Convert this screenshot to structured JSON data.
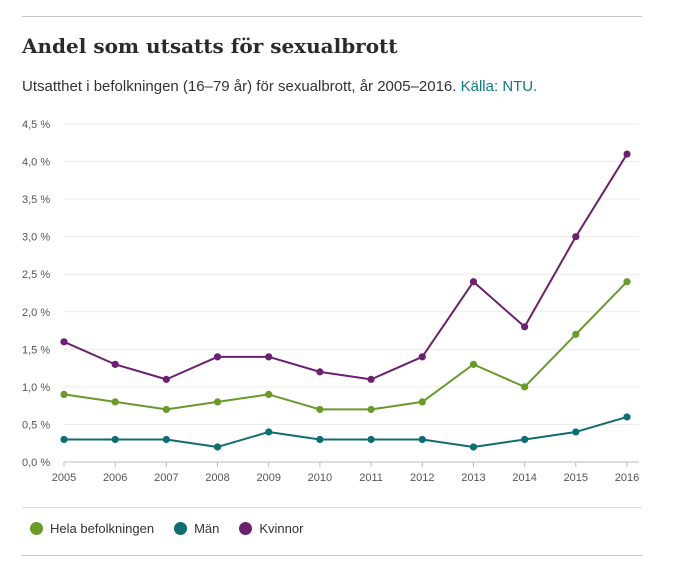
{
  "header": {
    "title": "Andel som utsatts för sexualbrott",
    "subtitle": "Utsatthet i befolkningen (16–79 år) för sexualbrott, år 2005–2016. ",
    "source_label": "Källa: NTU."
  },
  "chart_data": {
    "type": "line",
    "title": "",
    "xlabel": "",
    "ylabel": "",
    "x": [
      2005,
      2006,
      2007,
      2008,
      2009,
      2010,
      2011,
      2012,
      2013,
      2014,
      2015,
      2016
    ],
    "ylim": [
      0,
      4.5
    ],
    "yticks": [
      0,
      0.5,
      1.0,
      1.5,
      2.0,
      2.5,
      3.0,
      3.5,
      4.0,
      4.5
    ],
    "ytick_labels": [
      "0,0 %",
      "0,5 %",
      "1,0 %",
      "1,5 %",
      "2,0 %",
      "2,5 %",
      "3,0 %",
      "3,5 %",
      "4,0 %",
      "4,5 %"
    ],
    "grid": true,
    "legend": "bottom",
    "series": [
      {
        "name": "Hela befolkningen",
        "color": "#6a9a2a",
        "values": [
          0.9,
          0.8,
          0.7,
          0.8,
          0.9,
          0.7,
          0.7,
          0.8,
          1.3,
          1.0,
          1.7,
          2.4
        ]
      },
      {
        "name": "Män",
        "color": "#0e6e72",
        "values": [
          0.3,
          0.3,
          0.3,
          0.2,
          0.4,
          0.3,
          0.3,
          0.3,
          0.2,
          0.3,
          0.4,
          0.6
        ]
      },
      {
        "name": "Kvinnor",
        "color": "#6b2170",
        "values": [
          1.6,
          1.3,
          1.1,
          1.4,
          1.4,
          1.2,
          1.1,
          1.4,
          2.4,
          1.8,
          3.0,
          4.1
        ]
      }
    ]
  }
}
